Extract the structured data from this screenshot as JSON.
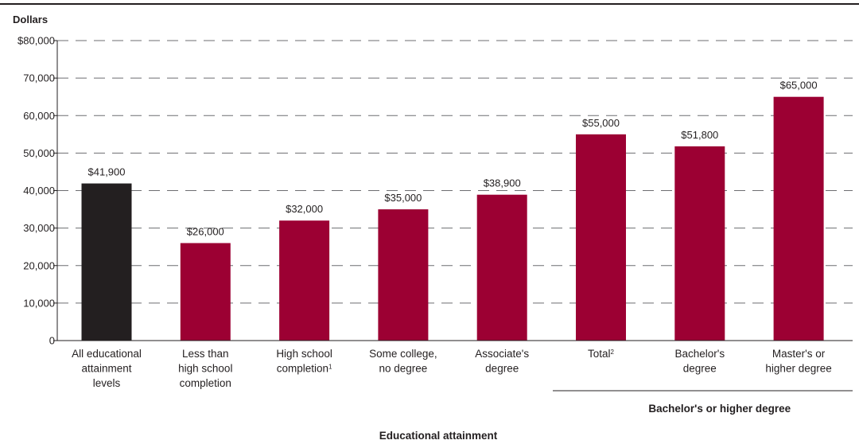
{
  "chart_data": {
    "type": "bar",
    "ylabel": "Dollars",
    "xlabel": "Educational attainment",
    "ylim": [
      0,
      80000
    ],
    "yticks": [
      {
        "value": 0,
        "label": "0"
      },
      {
        "value": 10000,
        "label": "10,000"
      },
      {
        "value": 20000,
        "label": "20,000"
      },
      {
        "value": 30000,
        "label": "30,000"
      },
      {
        "value": 40000,
        "label": "40,000"
      },
      {
        "value": 50000,
        "label": "50,000"
      },
      {
        "value": 60000,
        "label": "60,000"
      },
      {
        "value": 70000,
        "label": "70,000"
      },
      {
        "value": 80000,
        "label": "$80,000"
      }
    ],
    "grid": "horizontal dashed",
    "categories": [
      {
        "lines": [
          "All educational",
          "attainment",
          "levels"
        ]
      },
      {
        "lines": [
          "Less than",
          "high school",
          "completion"
        ]
      },
      {
        "lines": [
          "High school",
          "completion"
        ],
        "sup": "1"
      },
      {
        "lines": [
          "Some college,",
          "no degree"
        ]
      },
      {
        "lines": [
          "Associate's",
          "degree"
        ]
      },
      {
        "lines": [
          "Total"
        ],
        "sup": "2"
      },
      {
        "lines": [
          "Bachelor's",
          "degree"
        ]
      },
      {
        "lines": [
          "Master's or",
          "higher degree"
        ]
      }
    ],
    "values": [
      41900,
      26000,
      32000,
      35000,
      38900,
      55000,
      51800,
      65000
    ],
    "data_labels": [
      "$41,900",
      "$26,000",
      "$32,000",
      "$35,000",
      "$38,900",
      "$55,000",
      "$51,800",
      "$65,000"
    ],
    "bar_colors": [
      "#231f20",
      "#9c0033",
      "#9c0033",
      "#9c0033",
      "#9c0033",
      "#9c0033",
      "#9c0033",
      "#9c0033"
    ],
    "group": {
      "label": "Bachelor's or higher degree",
      "categories": [
        5,
        6,
        7
      ]
    }
  }
}
